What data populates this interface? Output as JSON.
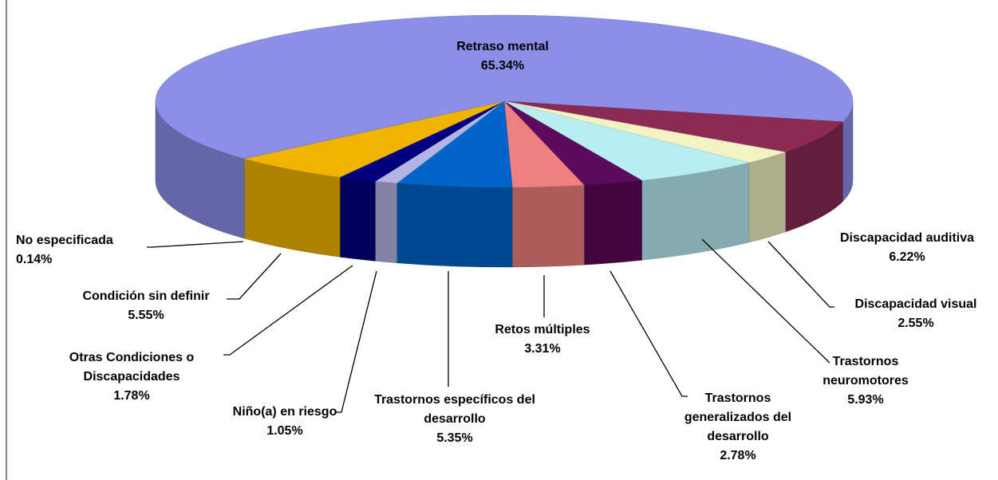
{
  "chart_data": {
    "type": "pie3d",
    "categories": [
      "Retraso mental",
      "Discapacidad auditiva",
      "Discapacidad visual",
      "Trastornos neuromotores",
      "Trastornos generalizados del desarrollo",
      "Retos múltiples",
      "Trastornos específicos del desarrollo",
      "Niño(a) en riesgo",
      "Otras Condiciones o Discapacidades",
      "Condición sin definir",
      "No especificada"
    ],
    "values": [
      65.34,
      6.22,
      2.55,
      5.93,
      2.78,
      3.31,
      5.35,
      1.05,
      1.78,
      5.55,
      0.14
    ],
    "value_labels": [
      "65.34%",
      "6.22%",
      "2.55%",
      "5.93%",
      "2.78%",
      "3.31%",
      "5.35%",
      "1.05%",
      "1.78%",
      "5.55%",
      "0.14%"
    ],
    "colors": [
      "#8b8fe8",
      "#8b2a55",
      "#f2f2c2",
      "#b8eef0",
      "#5c0a5c",
      "#f08080",
      "#0064c8",
      "#b4b4e4",
      "#000080",
      "#f0b400",
      "#9a9ad0"
    ]
  }
}
